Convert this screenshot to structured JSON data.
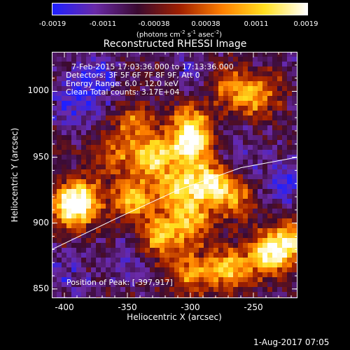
{
  "colorbar": {
    "tick_labels": [
      "-0.0019",
      "-0.0011",
      "-0.00038",
      "0.00038",
      "0.0011",
      "0.0019"
    ],
    "range": [
      -0.0019,
      0.0019
    ]
  },
  "chart_data": {
    "type": "heatmap",
    "title": "Reconstructed RHESSI Image",
    "xlabel": "Heliocentric X (arcsec)",
    "ylabel": "Heliocentric Y (arcsec)",
    "xlim": [
      -410,
      -215
    ],
    "ylim": [
      843,
      1030
    ],
    "xticks": [
      -400,
      -350,
      -300,
      -250
    ],
    "xtick_labels": [
      "-400",
      "-350",
      "-300",
      "-250"
    ],
    "yticks": [
      850,
      900,
      950,
      1000
    ],
    "ytick_labels": [
      "850",
      "900",
      "950",
      "1000"
    ],
    "info": [
      "7-Feb-2015 17:03:36.000 to 17:13:36.000",
      "Detectors: 3F 5F 6F 7F 8F 9F, Att 0",
      "Energy Range: 6.0 - 12.0 keV",
      "Clean    Total counts: 3.17E+04"
    ],
    "peak_text": "Position of Peak: [-397,917]",
    "peak_position": [
      -397,
      917
    ],
    "limb_curve": [
      [
        -410,
        880
      ],
      [
        -360,
        903
      ],
      [
        -310,
        925
      ],
      [
        -260,
        942
      ],
      [
        -215,
        950
      ]
    ],
    "colormap": [
      "#2020ff",
      "#6a2aa8",
      "#3a0a30",
      "#a02000",
      "#ff8000",
      "#ffe020",
      "#ffffff"
    ],
    "bright_regions": [
      {
        "x": -300,
        "y": 958,
        "weight": 1.0
      },
      {
        "x": -330,
        "y": 950,
        "weight": 0.9
      },
      {
        "x": -285,
        "y": 930,
        "weight": 0.95
      },
      {
        "x": -310,
        "y": 925,
        "weight": 0.85
      },
      {
        "x": -345,
        "y": 918,
        "weight": 0.8
      },
      {
        "x": -300,
        "y": 975,
        "weight": 0.7
      },
      {
        "x": -325,
        "y": 890,
        "weight": 0.75
      },
      {
        "x": -300,
        "y": 900,
        "weight": 0.75
      },
      {
        "x": -265,
        "y": 920,
        "weight": 0.6
      },
      {
        "x": -395,
        "y": 912,
        "weight": 0.9
      },
      {
        "x": -385,
        "y": 918,
        "weight": 0.7
      },
      {
        "x": -270,
        "y": 865,
        "weight": 0.8
      },
      {
        "x": -240,
        "y": 875,
        "weight": 0.85
      },
      {
        "x": -222,
        "y": 885,
        "weight": 0.9
      },
      {
        "x": -300,
        "y": 862,
        "weight": 0.6
      },
      {
        "x": -250,
        "y": 995,
        "weight": 0.65
      },
      {
        "x": -232,
        "y": 1010,
        "weight": 0.55
      },
      {
        "x": -270,
        "y": 1005,
        "weight": 0.5
      },
      {
        "x": -345,
        "y": 975,
        "weight": 0.5
      },
      {
        "x": -360,
        "y": 950,
        "weight": 0.45
      }
    ],
    "blue_regions": [
      {
        "x": -375,
        "y": 1010,
        "weight": 0.8
      },
      {
        "x": -395,
        "y": 990,
        "weight": 0.7
      },
      {
        "x": -300,
        "y": 1020,
        "weight": 0.5
      },
      {
        "x": -225,
        "y": 930,
        "weight": 0.7
      },
      {
        "x": -230,
        "y": 1015,
        "weight": 0.8
      },
      {
        "x": -400,
        "y": 860,
        "weight": 0.5
      },
      {
        "x": -350,
        "y": 870,
        "weight": 0.45
      },
      {
        "x": -260,
        "y": 955,
        "weight": 0.4
      }
    ]
  },
  "footer": {
    "date_text": "1-Aug-2017 07:05"
  }
}
